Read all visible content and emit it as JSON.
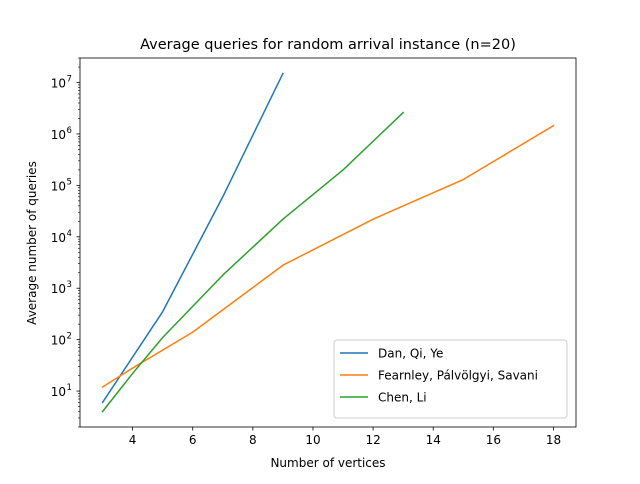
{
  "chart_data": {
    "type": "line",
    "title": "Average queries for random arrival instance (n=20)",
    "xlabel": "Number of vertices",
    "ylabel": "Average number of queries",
    "xlim": [
      2.25,
      18.75
    ],
    "ylim": [
      2.0,
      30000000
    ],
    "yscale": "log",
    "grid": false,
    "legend_placement": "lower-right",
    "x_ticks": [
      {
        "value": 4,
        "label": "4"
      },
      {
        "value": 6,
        "label": "6"
      },
      {
        "value": 8,
        "label": "8"
      },
      {
        "value": 10,
        "label": "10"
      },
      {
        "value": 12,
        "label": "12"
      },
      {
        "value": 14,
        "label": "14"
      },
      {
        "value": 16,
        "label": "16"
      },
      {
        "value": 18,
        "label": "18"
      }
    ],
    "y_ticks": [
      {
        "exp": 1,
        "base": "10",
        "sup": "1"
      },
      {
        "exp": 2,
        "base": "10",
        "sup": "2"
      },
      {
        "exp": 3,
        "base": "10",
        "sup": "3"
      },
      {
        "exp": 4,
        "base": "10",
        "sup": "4"
      },
      {
        "exp": 5,
        "base": "10",
        "sup": "5"
      },
      {
        "exp": 6,
        "base": "10",
        "sup": "6"
      },
      {
        "exp": 7,
        "base": "10",
        "sup": "7"
      }
    ],
    "series": [
      {
        "name": "Dan, Qi, Ye",
        "color": "#1f77b4",
        "x": [
          3,
          5,
          7,
          9
        ],
        "y": [
          6,
          350,
          60000,
          15000000
        ]
      },
      {
        "name": "Fearnley, Pálvölgyi, Savani",
        "color": "#ff7f0e",
        "x": [
          3,
          4,
          6,
          9,
          12,
          15,
          18
        ],
        "y": [
          12,
          28,
          140,
          2800,
          22000,
          130000,
          1450000
        ]
      },
      {
        "name": "Chen, Li",
        "color": "#2ca02c",
        "x": [
          3,
          4,
          5,
          7,
          9,
          11,
          13
        ],
        "y": [
          4,
          22,
          110,
          1800,
          22000,
          200000,
          2600000
        ]
      }
    ]
  }
}
